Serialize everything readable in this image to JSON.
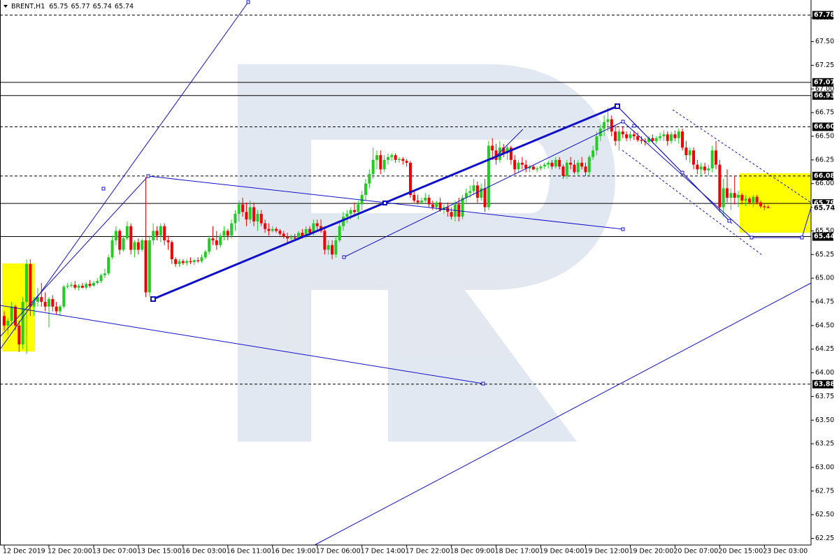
{
  "chart_data": {
    "type": "candlestick",
    "symbol": "BRENT,H1",
    "quote": [
      65.75,
      65.77,
      65.74,
      65.74
    ],
    "up_color": "#22cc22",
    "down_color": "#ee0000",
    "ylim": [
      62.18,
      67.94
    ],
    "yticks": [
      62.25,
      {
        "value": 62.5,
        "label": "62.50"
      },
      62.75,
      {
        "value": 63,
        "label": "63.00"
      },
      63.25,
      {
        "value": 63.5,
        "label": "63.50"
      },
      63.75,
      {
        "value": 64,
        "label": "64.00"
      },
      64.25,
      {
        "value": 64.5,
        "label": "64.50"
      },
      64.75,
      {
        "value": 65,
        "label": "65.00"
      },
      65.25,
      {
        "value": 65.5,
        "label": "65.50"
      },
      65.75,
      {
        "value": 66,
        "label": "66.00"
      },
      66.25,
      {
        "value": 66.5,
        "label": "66.50"
      },
      66.75,
      {
        "value": 67,
        "label": "67.00"
      },
      67.25,
      {
        "value": 67.5,
        "label": "67.50"
      },
      67.75
    ],
    "xticks": [
      {
        "value": 0,
        "label": "12 Dec 2019"
      },
      {
        "value": 12,
        "label": "12 Dec 20:00"
      },
      {
        "value": 24,
        "label": "13 Dec 07:00"
      },
      {
        "value": 36,
        "label": "13 Dec 15:00"
      },
      {
        "value": 48,
        "label": "16 Dec 03:00"
      },
      {
        "value": 60,
        "label": "16 Dec 11:00"
      },
      {
        "value": 72,
        "label": "16 Dec 19:00"
      },
      {
        "value": 84,
        "label": "17 Dec 06:00"
      },
      {
        "value": 96,
        "label": "17 Dec 14:00"
      },
      {
        "value": 108,
        "label": "17 Dec 22:00"
      },
      {
        "value": 120,
        "label": "18 Dec 09:00"
      },
      {
        "value": 132,
        "label": "18 Dec 17:00"
      },
      {
        "value": 144,
        "label": "19 Dec 04:00"
      },
      {
        "value": 156,
        "label": "19 Dec 12:00"
      },
      {
        "value": 168,
        "label": "19 Dec 20:00"
      },
      {
        "value": 180,
        "label": "20 Dec 07:00"
      },
      {
        "value": 192,
        "label": "20 Dec 15:00"
      },
      {
        "value": 204,
        "label": "23 Dec 03:00"
      }
    ],
    "levels": [
      {
        "price": 67.78,
        "style": "dashed"
      },
      {
        "price": 67.07,
        "style": "solid"
      },
      {
        "price": 66.93,
        "style": "solid"
      },
      {
        "price": {
          "value": 66.6,
          "label": "66.60"
        },
        "style": "dashed"
      },
      {
        "price": 66.08,
        "style": "dashed"
      },
      {
        "price": 65.79,
        "style": "solid"
      },
      {
        "price": 65.74,
        "style": "tag"
      },
      {
        "price": 65.44,
        "style": "solid"
      },
      {
        "price": 63.88,
        "style": "dashed"
      }
    ],
    "ohlc": [
      [
        64.6,
        64.65,
        64.45,
        64.5
      ],
      [
        64.5,
        64.58,
        64.4,
        64.55
      ],
      [
        64.55,
        64.75,
        64.5,
        64.7
      ],
      [
        64.7,
        64.72,
        64.45,
        64.5
      ],
      [
        64.5,
        64.55,
        64.22,
        64.3
      ],
      [
        64.3,
        64.8,
        64.25,
        64.75
      ],
      [
        64.75,
        65.2,
        64.2,
        65.15
      ],
      [
        65.15,
        65.2,
        64.6,
        64.7
      ],
      [
        64.7,
        64.8,
        64.6,
        64.75
      ],
      [
        64.75,
        64.9,
        64.7,
        64.8
      ],
      [
        64.8,
        64.95,
        64.7,
        64.75
      ],
      [
        64.75,
        64.85,
        64.65,
        64.7
      ],
      [
        64.7,
        64.8,
        64.48,
        64.78
      ],
      [
        64.78,
        64.82,
        64.65,
        64.7
      ],
      [
        64.7,
        64.75,
        64.62,
        64.65
      ],
      [
        64.65,
        64.72,
        64.6,
        64.7
      ],
      [
        64.7,
        64.93,
        64.68,
        64.91
      ],
      [
        64.91,
        64.95,
        64.89,
        64.92
      ],
      [
        64.92,
        64.96,
        64.9,
        64.93
      ],
      [
        64.93,
        64.97,
        64.88,
        64.9
      ],
      [
        64.9,
        64.94,
        64.87,
        64.92
      ],
      [
        64.92,
        64.95,
        64.89,
        64.9
      ],
      [
        64.9,
        64.96,
        64.88,
        64.94
      ],
      [
        64.94,
        64.98,
        64.9,
        64.92
      ],
      [
        64.92,
        64.97,
        64.91,
        64.95
      ],
      [
        64.95,
        65.0,
        64.93,
        64.97
      ],
      [
        64.97,
        65.05,
        64.95,
        65.03
      ],
      [
        65.03,
        65.1,
        65.0,
        65.05
      ],
      [
        65.05,
        65.25,
        65.03,
        65.22
      ],
      [
        65.22,
        65.45,
        65.2,
        65.4
      ],
      [
        65.4,
        65.55,
        65.35,
        65.5
      ],
      [
        65.5,
        65.52,
        65.25,
        65.3
      ],
      [
        65.3,
        65.45,
        65.28,
        65.42
      ],
      [
        65.42,
        65.6,
        65.4,
        65.55
      ],
      [
        65.55,
        65.58,
        65.25,
        65.3
      ],
      [
        65.3,
        65.4,
        65.22,
        65.38
      ],
      [
        65.38,
        65.42,
        65.25,
        65.3
      ],
      [
        65.3,
        65.42,
        65.28,
        65.4
      ],
      [
        65.4,
        66.07,
        64.8,
        64.85
      ],
      [
        64.85,
        65.45,
        64.8,
        65.4
      ],
      [
        65.4,
        65.58,
        65.35,
        65.5
      ],
      [
        65.5,
        65.55,
        65.4,
        65.45
      ],
      [
        65.45,
        65.58,
        65.38,
        65.55
      ],
      [
        65.55,
        65.58,
        65.35,
        65.4
      ],
      [
        65.4,
        65.45,
        65.3,
        65.38
      ],
      [
        65.38,
        65.4,
        65.15,
        65.2
      ],
      [
        65.2,
        65.22,
        65.12,
        65.15
      ],
      [
        65.15,
        65.2,
        65.12,
        65.18
      ],
      [
        65.18,
        65.2,
        65.14,
        65.16
      ],
      [
        65.16,
        65.2,
        65.13,
        65.18
      ],
      [
        65.18,
        65.22,
        65.15,
        65.17
      ],
      [
        65.17,
        65.2,
        65.14,
        65.19
      ],
      [
        65.19,
        65.22,
        65.16,
        65.18
      ],
      [
        65.18,
        65.25,
        65.16,
        65.22
      ],
      [
        65.22,
        65.3,
        65.2,
        65.28
      ],
      [
        65.28,
        65.45,
        65.25,
        65.42
      ],
      [
        65.42,
        65.55,
        65.35,
        65.4
      ],
      [
        65.4,
        65.5,
        65.3,
        65.35
      ],
      [
        65.35,
        65.48,
        65.32,
        65.45
      ],
      [
        65.45,
        65.55,
        65.4,
        65.5
      ],
      [
        65.5,
        65.52,
        65.4,
        65.45
      ],
      [
        65.45,
        65.62,
        65.42,
        65.58
      ],
      [
        65.58,
        65.72,
        65.5,
        65.68
      ],
      [
        65.68,
        65.82,
        65.6,
        65.78
      ],
      [
        65.78,
        65.85,
        65.65,
        65.7
      ],
      [
        65.7,
        65.8,
        65.55,
        65.62
      ],
      [
        65.62,
        65.82,
        65.58,
        65.75
      ],
      [
        65.75,
        65.8,
        65.55,
        65.6
      ],
      [
        65.6,
        65.72,
        65.5,
        65.68
      ],
      [
        65.68,
        65.72,
        65.55,
        65.58
      ],
      [
        65.58,
        65.62,
        65.48,
        65.52
      ],
      [
        65.52,
        65.58,
        65.45,
        65.5
      ],
      [
        65.5,
        65.55,
        65.48,
        65.52
      ],
      [
        65.52,
        65.54,
        65.48,
        65.5
      ],
      [
        65.5,
        65.52,
        65.45,
        65.47
      ],
      [
        65.47,
        65.5,
        65.42,
        65.44
      ],
      [
        65.44,
        65.48,
        65.38,
        65.42
      ],
      [
        65.42,
        65.46,
        65.4,
        65.43
      ],
      [
        65.43,
        65.47,
        65.4,
        65.42
      ],
      [
        65.42,
        65.5,
        65.4,
        65.48
      ],
      [
        65.48,
        65.52,
        65.42,
        65.44
      ],
      [
        65.44,
        65.55,
        65.42,
        65.52
      ],
      [
        65.52,
        65.55,
        65.45,
        65.48
      ],
      [
        65.48,
        65.62,
        65.45,
        65.58
      ],
      [
        65.58,
        65.62,
        65.5,
        65.55
      ],
      [
        65.55,
        65.62,
        65.48,
        65.5
      ],
      [
        65.5,
        65.55,
        65.25,
        65.3
      ],
      [
        65.3,
        65.4,
        65.25,
        65.35
      ],
      [
        65.35,
        65.4,
        65.2,
        65.25
      ],
      [
        65.25,
        65.45,
        65.22,
        65.4
      ],
      [
        65.4,
        65.6,
        65.38,
        65.55
      ],
      [
        65.55,
        65.7,
        65.5,
        65.65
      ],
      [
        65.65,
        65.72,
        65.58,
        65.68
      ],
      [
        65.68,
        65.75,
        65.62,
        65.72
      ],
      [
        65.72,
        65.8,
        65.65,
        65.7
      ],
      [
        65.7,
        65.82,
        65.62,
        65.78
      ],
      [
        65.78,
        65.92,
        65.72,
        65.88
      ],
      [
        65.88,
        66.05,
        65.82,
        66.0
      ],
      [
        66.0,
        66.15,
        65.95,
        66.1
      ],
      [
        66.1,
        66.38,
        66.05,
        66.25
      ],
      [
        66.25,
        66.35,
        66.15,
        66.3
      ],
      [
        66.3,
        66.35,
        66.1,
        66.15
      ],
      [
        66.15,
        66.3,
        66.12,
        66.25
      ],
      [
        66.25,
        66.32,
        66.2,
        66.28
      ],
      [
        66.28,
        66.32,
        66.24,
        66.3
      ],
      [
        66.3,
        66.32,
        66.22,
        66.25
      ],
      [
        66.25,
        66.28,
        66.22,
        66.26
      ],
      [
        66.26,
        66.28,
        66.2,
        66.24
      ],
      [
        66.24,
        66.26,
        66.18,
        66.22
      ],
      [
        66.22,
        66.24,
        65.85,
        65.88
      ],
      [
        65.88,
        65.92,
        65.8,
        65.82
      ],
      [
        65.82,
        65.88,
        65.78,
        65.8
      ],
      [
        65.8,
        65.85,
        65.78,
        65.82
      ],
      [
        65.82,
        65.9,
        65.8,
        65.85
      ],
      [
        65.85,
        65.88,
        65.75,
        65.78
      ],
      [
        65.78,
        65.82,
        65.72,
        65.75
      ],
      [
        65.75,
        65.82,
        65.72,
        65.8
      ],
      [
        65.8,
        65.85,
        65.7,
        65.72
      ],
      [
        65.72,
        65.78,
        65.68,
        65.75
      ],
      [
        65.75,
        65.8,
        65.65,
        65.7
      ],
      [
        65.7,
        65.75,
        65.62,
        65.65
      ],
      [
        65.65,
        65.82,
        65.6,
        65.78
      ],
      [
        65.78,
        65.85,
        65.6,
        65.65
      ],
      [
        65.65,
        65.88,
        65.62,
        65.85
      ],
      [
        65.85,
        65.95,
        65.8,
        65.9
      ],
      [
        65.9,
        65.98,
        65.85,
        65.92
      ],
      [
        65.92,
        66.05,
        65.88,
        65.98
      ],
      [
        65.98,
        66.02,
        65.8,
        65.85
      ],
      [
        65.85,
        66.0,
        65.82,
        65.95
      ],
      [
        65.95,
        66.05,
        65.7,
        65.75
      ],
      [
        65.75,
        66.45,
        65.72,
        66.4
      ],
      [
        66.4,
        66.48,
        66.25,
        66.35
      ],
      [
        66.35,
        66.42,
        66.2,
        66.25
      ],
      [
        66.25,
        66.45,
        66.22,
        66.38
      ],
      [
        66.38,
        66.42,
        66.28,
        66.32
      ],
      [
        66.32,
        66.4,
        66.25,
        66.38
      ],
      [
        66.38,
        66.4,
        66.2,
        66.25
      ],
      [
        66.25,
        66.3,
        66.1,
        66.15
      ],
      [
        66.15,
        66.25,
        66.12,
        66.22
      ],
      [
        66.22,
        66.28,
        66.15,
        66.2
      ],
      [
        66.2,
        66.25,
        66.12,
        66.16
      ],
      [
        66.16,
        66.2,
        66.12,
        66.18
      ],
      [
        66.18,
        66.2,
        66.14,
        66.15
      ],
      [
        66.15,
        66.18,
        66.12,
        66.16
      ],
      [
        66.16,
        66.2,
        66.14,
        66.18
      ],
      [
        66.18,
        66.22,
        66.15,
        66.2
      ],
      [
        66.2,
        66.24,
        66.16,
        66.22
      ],
      [
        66.22,
        66.25,
        66.15,
        66.18
      ],
      [
        66.18,
        66.28,
        66.16,
        66.25
      ],
      [
        66.25,
        66.28,
        66.15,
        66.18
      ],
      [
        66.18,
        66.2,
        66.05,
        66.08
      ],
      [
        66.08,
        66.25,
        66.05,
        66.22
      ],
      [
        66.22,
        66.28,
        66.15,
        66.2
      ],
      [
        66.2,
        66.25,
        66.1,
        66.12
      ],
      [
        66.12,
        66.25,
        66.08,
        66.22
      ],
      [
        66.22,
        66.28,
        66.15,
        66.18
      ],
      [
        66.18,
        66.22,
        66.08,
        66.12
      ],
      [
        66.12,
        66.3,
        66.08,
        66.28
      ],
      [
        66.28,
        66.4,
        66.25,
        66.35
      ],
      [
        66.35,
        66.55,
        66.3,
        66.5
      ],
      [
        66.5,
        66.62,
        66.45,
        66.58
      ],
      [
        66.58,
        66.72,
        66.5,
        66.65
      ],
      [
        66.65,
        66.8,
        66.55,
        66.68
      ],
      [
        66.68,
        66.72,
        66.5,
        66.55
      ],
      [
        66.55,
        66.62,
        66.4,
        66.45
      ],
      [
        66.45,
        66.58,
        66.35,
        66.55
      ],
      [
        66.55,
        66.6,
        66.48,
        66.52
      ],
      [
        66.52,
        66.55,
        66.45,
        66.48
      ],
      [
        66.48,
        66.55,
        66.45,
        66.52
      ],
      [
        66.52,
        66.56,
        66.46,
        66.5
      ],
      [
        66.5,
        66.54,
        66.44,
        66.46
      ],
      [
        66.46,
        66.5,
        66.42,
        66.45
      ],
      [
        66.45,
        66.48,
        66.4,
        66.44
      ],
      [
        66.44,
        66.5,
        66.42,
        66.48
      ],
      [
        66.48,
        66.52,
        66.43,
        66.45
      ],
      [
        66.45,
        66.5,
        66.42,
        66.48
      ],
      [
        66.48,
        66.54,
        66.45,
        66.5
      ],
      [
        66.5,
        66.56,
        66.45,
        66.52
      ],
      [
        66.52,
        66.55,
        66.4,
        66.45
      ],
      [
        66.45,
        66.55,
        66.42,
        66.52
      ],
      [
        66.52,
        66.56,
        66.45,
        66.48
      ],
      [
        66.48,
        66.58,
        66.42,
        66.55
      ],
      [
        66.55,
        66.58,
        66.35,
        66.38
      ],
      [
        66.38,
        66.45,
        66.25,
        66.3
      ],
      [
        66.3,
        66.38,
        66.22,
        66.35
      ],
      [
        66.35,
        66.38,
        66.15,
        66.2
      ],
      [
        66.2,
        66.25,
        66.1,
        66.15
      ],
      [
        66.15,
        66.22,
        66.08,
        66.18
      ],
      [
        66.18,
        66.22,
        66.1,
        66.14
      ],
      [
        66.14,
        66.2,
        66.08,
        66.16
      ],
      [
        66.16,
        66.4,
        66.12,
        66.35
      ],
      [
        66.35,
        66.45,
        66.15,
        66.2
      ],
      [
        66.2,
        66.25,
        65.7,
        65.75
      ],
      [
        65.75,
        66.05,
        65.65,
        65.95
      ],
      [
        65.95,
        66.15,
        65.8,
        65.85
      ],
      [
        65.85,
        65.95,
        65.72,
        65.9
      ],
      [
        65.9,
        66.08,
        65.78,
        65.85
      ],
      [
        65.85,
        65.92,
        65.75,
        65.88
      ],
      [
        65.88,
        65.9,
        65.78,
        65.82
      ],
      [
        65.82,
        65.88,
        65.76,
        65.84
      ],
      [
        65.84,
        65.86,
        65.78,
        65.8
      ],
      [
        65.8,
        65.88,
        65.75,
        65.86
      ],
      [
        65.86,
        65.88,
        65.78,
        65.8
      ],
      [
        65.8,
        65.82,
        65.74,
        65.76
      ],
      [
        65.76,
        65.78,
        65.72,
        65.75
      ],
      [
        65.75,
        65.77,
        65.74,
        65.74
      ]
    ]
  }
}
